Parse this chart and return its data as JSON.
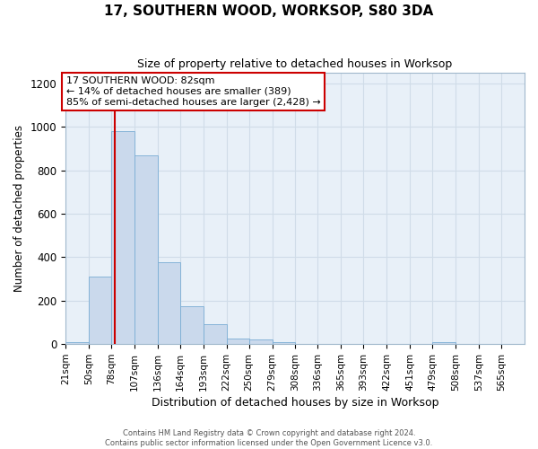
{
  "title": "17, SOUTHERN WOOD, WORKSOP, S80 3DA",
  "subtitle": "Size of property relative to detached houses in Worksop",
  "xlabel": "Distribution of detached houses by size in Worksop",
  "ylabel": "Number of detached properties",
  "footer_line1": "Contains HM Land Registry data © Crown copyright and database right 2024.",
  "footer_line2": "Contains public sector information licensed under the Open Government Licence v3.0.",
  "annotation_title": "17 SOUTHERN WOOD: 82sqm",
  "annotation_line2": "← 14% of detached houses are smaller (389)",
  "annotation_line3": "85% of semi-detached houses are larger (2,428) →",
  "property_size": 82,
  "bin_edges": [
    21,
    50,
    78,
    107,
    136,
    164,
    193,
    222,
    250,
    279,
    308,
    336,
    365,
    393,
    422,
    451,
    479,
    508,
    537,
    565,
    594
  ],
  "bar_heights": [
    10,
    310,
    980,
    870,
    375,
    175,
    90,
    25,
    20,
    10,
    0,
    0,
    0,
    0,
    0,
    0,
    10,
    0,
    0,
    0
  ],
  "bar_color": "#cad9ec",
  "bar_edge_color": "#7aadd4",
  "red_line_color": "#cc0000",
  "annotation_box_color": "#cc0000",
  "grid_color": "#d0dce8",
  "background_color": "#ffffff",
  "plot_bg_color": "#e8f0f8",
  "ylim": [
    0,
    1250
  ],
  "yticks": [
    0,
    200,
    400,
    600,
    800,
    1000,
    1200
  ]
}
